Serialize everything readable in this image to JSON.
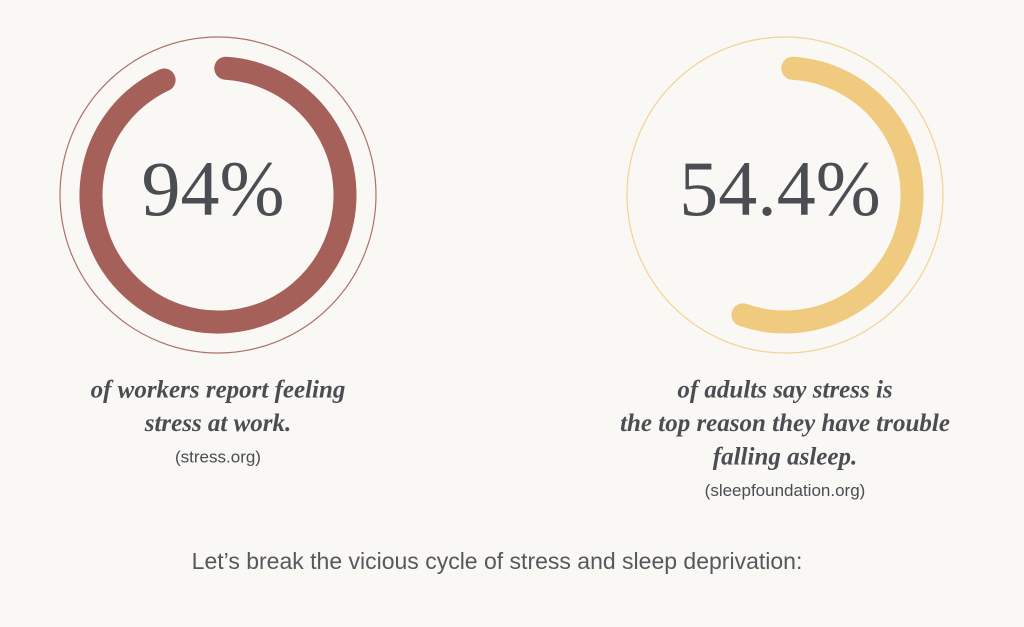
{
  "stats": [
    {
      "value": 94,
      "value_label": "94%",
      "label_lines": [
        "of workers report feeling",
        "stress at work."
      ],
      "source": "(stress.org)",
      "color": "#a6605a",
      "ring_color": "#b0706a"
    },
    {
      "value": 54.4,
      "value_label": "54.4%",
      "label_lines": [
        "of adults say stress is",
        "the top reason they have trouble",
        "falling asleep."
      ],
      "source": "(sleepfoundation.org)",
      "color": "#efca7f",
      "ring_color": "#f2d394"
    }
  ],
  "footer": "Let’s break the vicious cycle of stress and sleep deprivation:"
}
